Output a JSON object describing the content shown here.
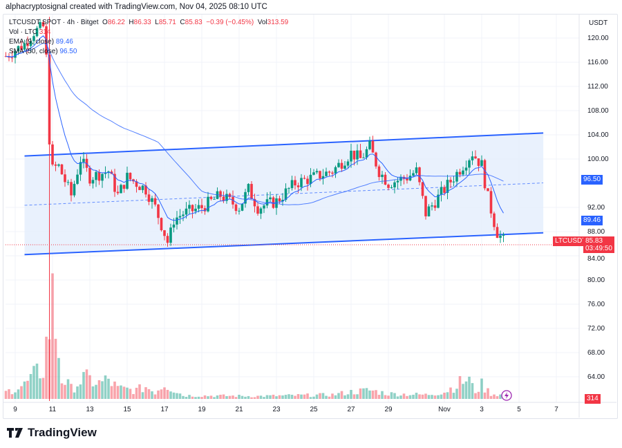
{
  "caption": "alphacryptosignal created with TradingView.com, Nov 04, 2025 08:10 UTC",
  "legend": {
    "symbol": "LTCUSDT SPOT · 4h · Bitget",
    "o_label": "O",
    "o": "86.22",
    "h_label": "H",
    "h": "86.33",
    "l_label": "L",
    "l": "85.71",
    "c_label": "C",
    "c": "85.83",
    "change": "−0.39 (−0.45%)",
    "vol_label": "Vol",
    "vol": "313.59",
    "vol_ind": "Vol · LTC",
    "vol_ind_val": "314",
    "ema": "EMA (9, close)",
    "ema_val": "89.46",
    "sma": "SMA (50, close)",
    "sma_val": "96.50"
  },
  "axis": {
    "currency": "USDT",
    "price_ticks": [
      "120.00",
      "116.00",
      "112.00",
      "108.00",
      "104.00",
      "100.00",
      "92.00",
      "88.00",
      "84.00",
      "80.00",
      "76.00",
      "72.00",
      "68.00",
      "64.00"
    ],
    "date_ticks": [
      {
        "d": 9,
        "t": "9"
      },
      {
        "d": 11,
        "t": "11"
      },
      {
        "d": 13,
        "t": "13"
      },
      {
        "d": 15,
        "t": "15"
      },
      {
        "d": 17,
        "t": "17"
      },
      {
        "d": 19,
        "t": "19"
      },
      {
        "d": 21,
        "t": "21"
      },
      {
        "d": 23,
        "t": "23"
      },
      {
        "d": 25,
        "t": "25"
      },
      {
        "d": 27,
        "t": "27"
      },
      {
        "d": 29,
        "t": "29"
      },
      {
        "d": 32,
        "t": "Nov"
      },
      {
        "d": 34,
        "t": "3"
      },
      {
        "d": 36,
        "t": "5"
      },
      {
        "d": 38,
        "t": "7"
      }
    ]
  },
  "tags": {
    "sma": "96.50",
    "ema": "89.46",
    "symbol": "LTCUSDT",
    "price": "85.83",
    "countdown": "03:49:50",
    "volume": "314"
  },
  "colors": {
    "up": "#089981",
    "down": "#f23645",
    "channel": "#2962ff",
    "fill": "#e3edfd",
    "ema": "#2962ff"
  },
  "chart_data": {
    "type": "candlestick",
    "interval_hours": 4,
    "price_anchors": [
      [
        8.5,
        117
      ],
      [
        9,
        118
      ],
      [
        9.5,
        119
      ],
      [
        10,
        121
      ],
      [
        10.6,
        122
      ],
      [
        10.9,
        98
      ],
      [
        11.3,
        99
      ],
      [
        12,
        94
      ],
      [
        12.5,
        100
      ],
      [
        13,
        97
      ],
      [
        14,
        98
      ],
      [
        14.5,
        94
      ],
      [
        15,
        97
      ],
      [
        16,
        95
      ],
      [
        16.5,
        92
      ],
      [
        17.2,
        86
      ],
      [
        17.5,
        90
      ],
      [
        18,
        91
      ],
      [
        19,
        92
      ],
      [
        20,
        94
      ],
      [
        21,
        92
      ],
      [
        21.5,
        95
      ],
      [
        22,
        92
      ],
      [
        23,
        93
      ],
      [
        24,
        96
      ],
      [
        25,
        97
      ],
      [
        26,
        98
      ],
      [
        27,
        101
      ],
      [
        27.5,
        100
      ],
      [
        28,
        102
      ],
      [
        28.5,
        98
      ],
      [
        29,
        96
      ],
      [
        30,
        97
      ],
      [
        30.5,
        98
      ],
      [
        31,
        91
      ],
      [
        32,
        95
      ],
      [
        32.5,
        97
      ],
      [
        33,
        99
      ],
      [
        33.5,
        101
      ],
      [
        34,
        99
      ],
      [
        34.3,
        94
      ],
      [
        34.8,
        88
      ],
      [
        35.33,
        85.83
      ]
    ],
    "volume_anchors": [
      [
        8.5,
        20
      ],
      [
        9.5,
        40
      ],
      [
        10.5,
        90
      ],
      [
        11,
        280
      ],
      [
        11.5,
        60
      ],
      [
        12,
        30
      ],
      [
        12.7,
        60
      ],
      [
        13.5,
        45
      ],
      [
        14,
        55
      ],
      [
        14.5,
        30
      ],
      [
        15.5,
        25
      ],
      [
        16,
        35
      ],
      [
        16.5,
        20
      ],
      [
        17,
        45
      ],
      [
        18,
        10
      ],
      [
        22,
        8
      ],
      [
        26,
        12
      ],
      [
        27,
        20
      ],
      [
        28,
        25
      ],
      [
        29,
        15
      ],
      [
        31,
        12
      ],
      [
        32,
        20
      ],
      [
        33.3,
        60
      ],
      [
        33.6,
        20
      ],
      [
        34,
        40
      ],
      [
        34.5,
        15
      ],
      [
        35.3,
        10
      ]
    ],
    "channel": {
      "upper": [
        [
          9.5,
          100.5
        ],
        [
          37.3,
          104.3
        ]
      ],
      "lower": [
        [
          9.5,
          84.2
        ],
        [
          37.3,
          87.8
        ]
      ]
    },
    "crash_wick_low": 60
  }
}
